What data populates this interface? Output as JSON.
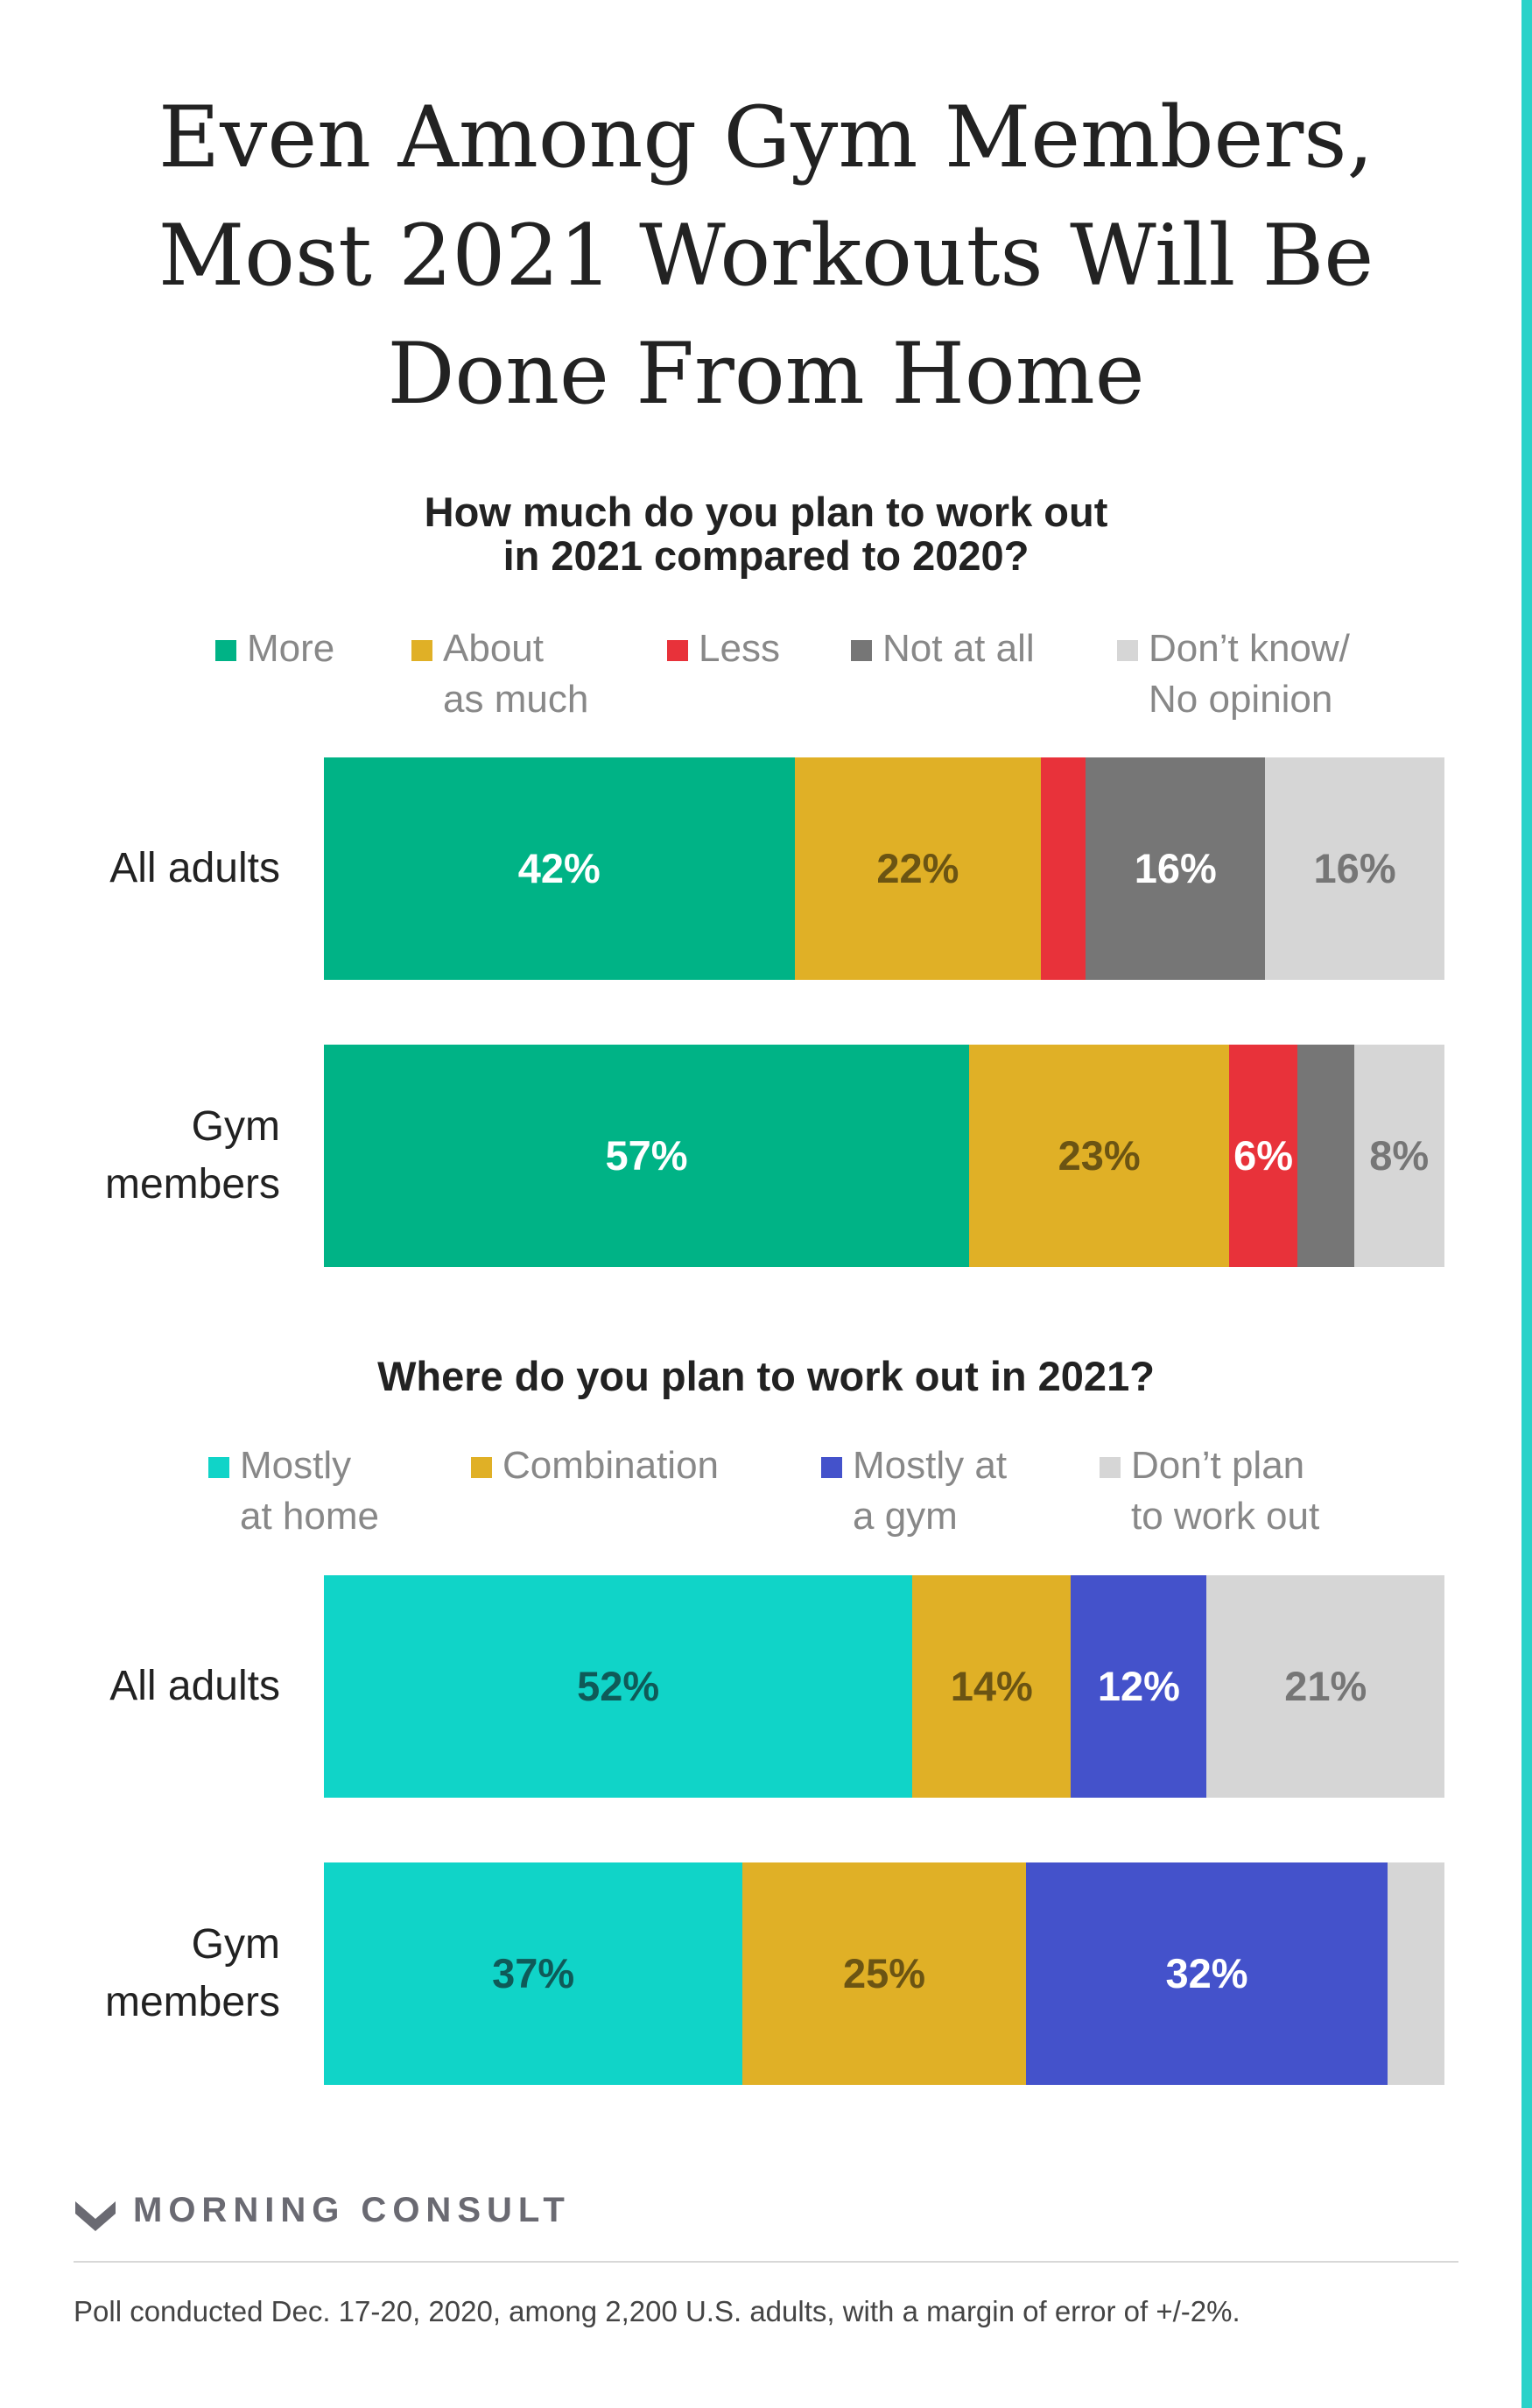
{
  "title": "Even Among Gym Members,\nMost 2021 Workouts Will Be\nDone From Home",
  "brand": {
    "name": "MORNING CONSULT",
    "accent_color": "#2ad2c9"
  },
  "footnote": "Poll conducted Dec. 17-20, 2020, among 2,200 U.S. adults, with a margin of error of +/-2%.",
  "chart_data": [
    {
      "type": "bar",
      "orientation": "horizontal",
      "stacked": true,
      "title": "How much do you plan to work out\nin 2021 compared to 2020?",
      "categories": [
        "All adults",
        "Gym\nmembers"
      ],
      "legend": [
        {
          "name": "More",
          "color": "#00b386"
        },
        {
          "name": "About\nas much",
          "color": "#e0b026"
        },
        {
          "name": "Less",
          "color": "#e8323a"
        },
        {
          "name": "Not at all",
          "color": "#767676"
        },
        {
          "name": "Don’t know/\nNo opinion",
          "color": "#d6d6d6"
        }
      ],
      "series": [
        {
          "name": "More",
          "color": "#00b386",
          "label_color": "#ffffff",
          "values": [
            42,
            57
          ],
          "labels": [
            "42%",
            "57%"
          ]
        },
        {
          "name": "About as much",
          "color": "#e0b026",
          "label_color": "#6b5413",
          "values": [
            22,
            23
          ],
          "labels": [
            "22%",
            "23%"
          ]
        },
        {
          "name": "Less",
          "color": "#e8323a",
          "label_color": "#ffffff",
          "values": [
            4,
            6
          ],
          "labels": [
            "",
            "6%"
          ]
        },
        {
          "name": "Not at all",
          "color": "#767676",
          "label_color": "#ffffff",
          "values": [
            16,
            5
          ],
          "labels": [
            "16%",
            ""
          ]
        },
        {
          "name": "Don’t know/No opinion",
          "color": "#d6d6d6",
          "label_color": "#767676",
          "values": [
            16,
            8
          ],
          "labels": [
            "16%",
            "8%"
          ]
        }
      ]
    },
    {
      "type": "bar",
      "orientation": "horizontal",
      "stacked": true,
      "title": "Where do you plan to work out in 2021?",
      "categories": [
        "All adults",
        "Gym\nmembers"
      ],
      "legend": [
        {
          "name": "Mostly\nat home",
          "color": "#10d4c8"
        },
        {
          "name": "Combination",
          "color": "#e0b026"
        },
        {
          "name": "Mostly at\na gym",
          "color": "#4452cb"
        },
        {
          "name": "Don’t plan\nto work out",
          "color": "#d6d6d6"
        }
      ],
      "series": [
        {
          "name": "Mostly at home",
          "color": "#10d4c8",
          "label_color": "#0f5a58",
          "values": [
            52,
            37
          ],
          "labels": [
            "52%",
            "37%"
          ]
        },
        {
          "name": "Combination",
          "color": "#e0b026",
          "label_color": "#6b5413",
          "values": [
            14,
            25
          ],
          "labels": [
            "14%",
            "25%"
          ]
        },
        {
          "name": "Mostly at a gym",
          "color": "#4452cb",
          "label_color": "#ffffff",
          "values": [
            12,
            32
          ],
          "labels": [
            "12%",
            "32%"
          ]
        },
        {
          "name": "Don’t plan to work out",
          "color": "#d6d6d6",
          "label_color": "#767676",
          "values": [
            21,
            5
          ],
          "labels": [
            "21%",
            ""
          ]
        }
      ]
    }
  ]
}
